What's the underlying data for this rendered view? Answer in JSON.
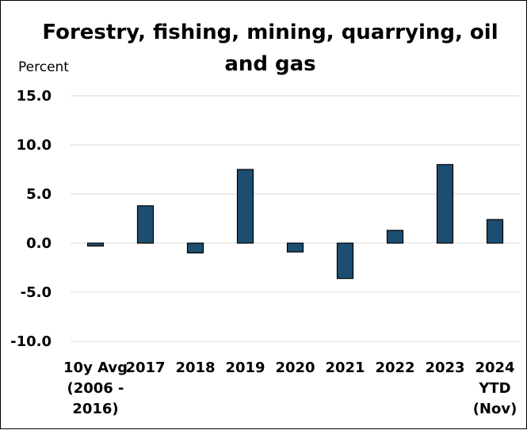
{
  "chart_data": {
    "type": "bar",
    "title": "Forestry, fishing, mining, quarrying, oil and gas",
    "ylabel": "Percent",
    "xlabel": "",
    "categories": [
      [
        "10y Avg",
        "(2006 -",
        "2016)"
      ],
      [
        "2017"
      ],
      [
        "2018"
      ],
      [
        "2019"
      ],
      [
        "2020"
      ],
      [
        "2021"
      ],
      [
        "2022"
      ],
      [
        "2023"
      ],
      [
        "2024",
        "YTD",
        "(Nov)"
      ]
    ],
    "values": [
      -0.3,
      3.8,
      -1.0,
      7.5,
      -0.9,
      -3.6,
      1.3,
      8.0,
      2.4
    ],
    "ylim": [
      -10,
      15
    ],
    "yticks": [
      "15.0",
      "10.0",
      "5.0",
      "0.0",
      "-5.0",
      "-10.0"
    ],
    "grid": true,
    "bar_color": "#1d4e72",
    "grid_color": "#d9d9d9"
  }
}
